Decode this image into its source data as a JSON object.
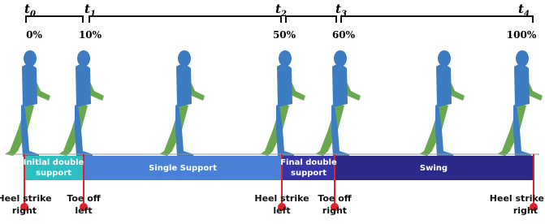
{
  "time_points": [
    {
      "symbol": "t",
      "index": "0",
      "percent": "0%"
    },
    {
      "symbol": "t",
      "index": "1",
      "percent": "10%"
    },
    {
      "symbol": "t",
      "index": "2",
      "percent": "50%"
    },
    {
      "symbol": "t",
      "index": "3",
      "percent": "60%"
    },
    {
      "symbol": "t",
      "index": "4",
      "percent": "100%"
    }
  ],
  "phases": [
    {
      "lines": [
        "Initial double",
        "support"
      ]
    },
    {
      "lines": [
        "Single Support"
      ]
    },
    {
      "lines": [
        "Final double",
        "support"
      ]
    },
    {
      "lines": [
        "Swing"
      ]
    }
  ],
  "events": [
    {
      "lines": [
        "Heel strike",
        "right"
      ]
    },
    {
      "lines": [
        "Toe off",
        "left"
      ]
    },
    {
      "lines": [
        "Heel strike",
        "left"
      ]
    },
    {
      "lines": [
        "Toe off",
        "right"
      ]
    },
    {
      "lines": [
        "Heel strike",
        "right"
      ]
    }
  ]
}
